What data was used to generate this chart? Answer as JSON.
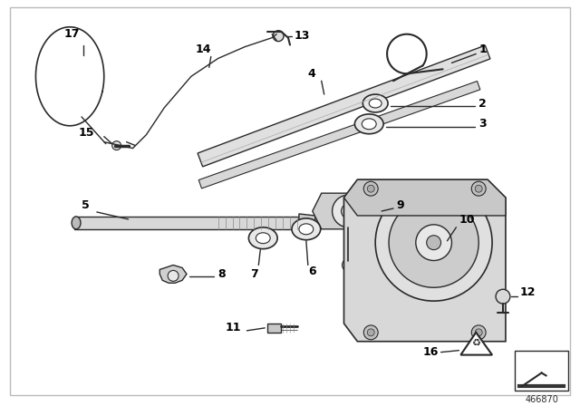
{
  "bg_color": "#ffffff",
  "line_color": "#2a2a2a",
  "label_color": "#000000",
  "part_number": "466870",
  "fig_width": 6.4,
  "fig_height": 4.48,
  "dpi": 100
}
